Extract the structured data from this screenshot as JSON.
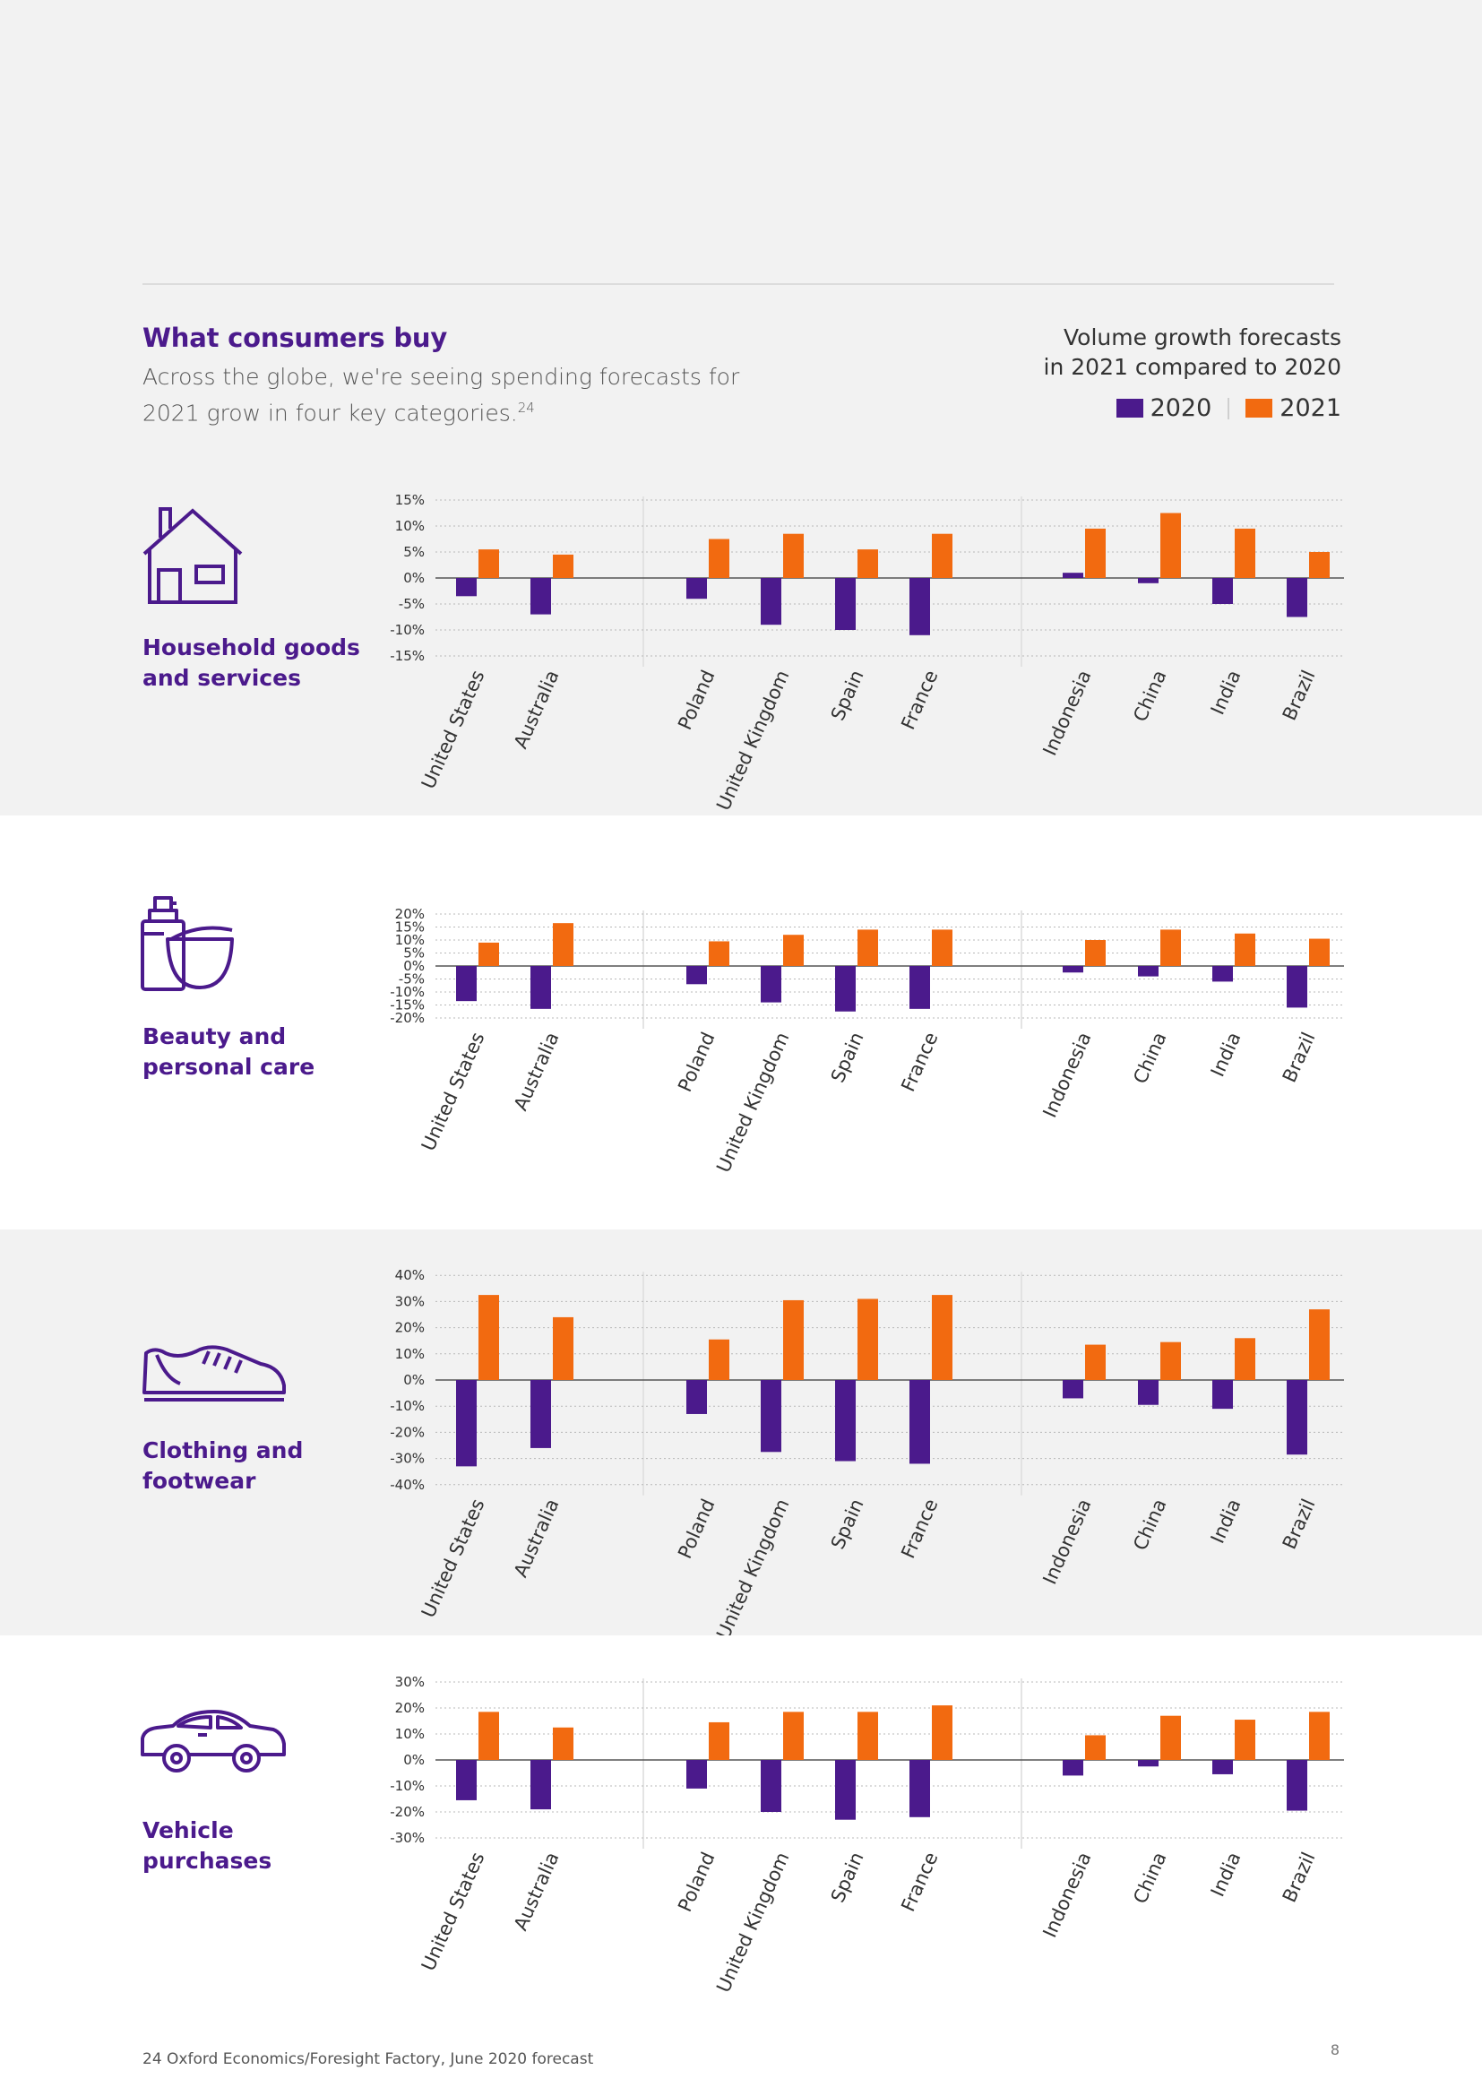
{
  "colors": {
    "y2020": "#4b1a8c",
    "y2021": "#f26a10",
    "accent": "#4b1a8c",
    "band_grey": "#f2f2f2"
  },
  "header": {
    "title": "What consumers buy",
    "intro_text": "Across the globe, we're seeing spending forecasts for 2021 grow in four key categories.",
    "intro_sup": "24",
    "volume_title_line1": "Volume growth forecasts",
    "volume_title_line2": "in 2021 compared to 2020",
    "legend": [
      {
        "label": "2020",
        "color": "#4b1a8c"
      },
      {
        "label": "2021",
        "color": "#f26a10"
      }
    ]
  },
  "categories": [
    {
      "label_line1": "Household goods",
      "label_line2": "and services",
      "icon": "house-icon"
    },
    {
      "label_line1": "Beauty and",
      "label_line2": "personal care",
      "icon": "beauty-products-icon"
    },
    {
      "label_line1": "Clothing and",
      "label_line2": "footwear",
      "icon": "shoe-icon"
    },
    {
      "label_line1": "Vehicle",
      "label_line2": "purchases",
      "icon": "car-icon"
    }
  ],
  "chart_data": [
    {
      "type": "bar",
      "title": "Household goods and services",
      "categories": [
        "United States",
        "Australia",
        "Poland",
        "United Kingdom",
        "Spain",
        "France",
        "Indonesia",
        "China",
        "India",
        "Brazil"
      ],
      "groups": [
        [
          0,
          1
        ],
        [
          2,
          3,
          4,
          5
        ],
        [
          6,
          7,
          8,
          9
        ]
      ],
      "series": [
        {
          "name": "2020",
          "values": [
            -3.5,
            -7,
            -4,
            -9,
            -10,
            -11,
            1,
            -1,
            -5,
            -7.5
          ]
        },
        {
          "name": "2021",
          "values": [
            5.5,
            4.5,
            7.5,
            8.5,
            5.5,
            8.5,
            9.5,
            12.5,
            9.5,
            5
          ]
        }
      ],
      "ylim": [
        -15,
        15
      ],
      "yticks": [
        15,
        10,
        5,
        0,
        -5,
        -10,
        -15
      ],
      "ytick_labels": [
        "15%",
        "10%",
        "5%",
        "0%",
        "-5%",
        "-10%",
        "-15%"
      ]
    },
    {
      "type": "bar",
      "title": "Beauty and personal care",
      "categories": [
        "United States",
        "Australia",
        "Poland",
        "United Kingdom",
        "Spain",
        "France",
        "Indonesia",
        "China",
        "India",
        "Brazil"
      ],
      "groups": [
        [
          0,
          1
        ],
        [
          2,
          3,
          4,
          5
        ],
        [
          6,
          7,
          8,
          9
        ]
      ],
      "series": [
        {
          "name": "2020",
          "values": [
            -13.5,
            -16.5,
            -7,
            -14,
            -17.5,
            -16.5,
            -2.5,
            -4,
            -6,
            -16
          ]
        },
        {
          "name": "2021",
          "values": [
            9,
            16.5,
            9.5,
            12,
            14,
            14,
            10,
            14,
            12.5,
            10.5
          ]
        }
      ],
      "ylim": [
        -20,
        20
      ],
      "yticks": [
        20,
        15,
        10,
        5,
        0,
        -5,
        -10,
        -15,
        -20
      ],
      "ytick_labels": [
        "20%",
        "15%",
        "10%",
        "5%",
        "0%",
        "-5%",
        "-10%",
        "-15%",
        "-20%"
      ]
    },
    {
      "type": "bar",
      "title": "Clothing and footwear",
      "categories": [
        "United States",
        "Australia",
        "Poland",
        "United Kingdom",
        "Spain",
        "France",
        "Indonesia",
        "China",
        "India",
        "Brazil"
      ],
      "groups": [
        [
          0,
          1
        ],
        [
          2,
          3,
          4,
          5
        ],
        [
          6,
          7,
          8,
          9
        ]
      ],
      "series": [
        {
          "name": "2020",
          "values": [
            -33,
            -26,
            -13,
            -27.5,
            -31,
            -32,
            -7,
            -9.5,
            -11,
            -28.5
          ]
        },
        {
          "name": "2021",
          "values": [
            32.5,
            24,
            15.5,
            30.5,
            31,
            32.5,
            13.5,
            14.5,
            16,
            27
          ]
        }
      ],
      "ylim": [
        -40,
        40
      ],
      "yticks": [
        40,
        30,
        20,
        10,
        0,
        -10,
        -20,
        -30,
        -40
      ],
      "ytick_labels": [
        "40%",
        "30%",
        "20%",
        "10%",
        "0%",
        "-10%",
        "-20%",
        "-30%",
        "-40%"
      ]
    },
    {
      "type": "bar",
      "title": "Vehicle purchases",
      "categories": [
        "United States",
        "Australia",
        "Poland",
        "United Kingdom",
        "Spain",
        "France",
        "Indonesia",
        "China",
        "India",
        "Brazil"
      ],
      "groups": [
        [
          0,
          1
        ],
        [
          2,
          3,
          4,
          5
        ],
        [
          6,
          7,
          8,
          9
        ]
      ],
      "series": [
        {
          "name": "2020",
          "values": [
            -15.5,
            -19,
            -11,
            -20,
            -23,
            -22,
            -6,
            -2.5,
            -5.5,
            -19.5
          ]
        },
        {
          "name": "2021",
          "values": [
            18.5,
            12.5,
            14.5,
            18.5,
            18.5,
            21,
            9.5,
            17,
            15.5,
            18.5
          ]
        }
      ],
      "ylim": [
        -30,
        30
      ],
      "yticks": [
        30,
        20,
        10,
        0,
        -10,
        -20,
        -30
      ],
      "ytick_labels": [
        "30%",
        "20%",
        "10%",
        "0%",
        "-10%",
        "-20%",
        "-30%"
      ]
    }
  ],
  "footer": {
    "footnote": "24 Oxford Economics/Foresight Factory, June 2020 forecast",
    "page_number": "8"
  }
}
